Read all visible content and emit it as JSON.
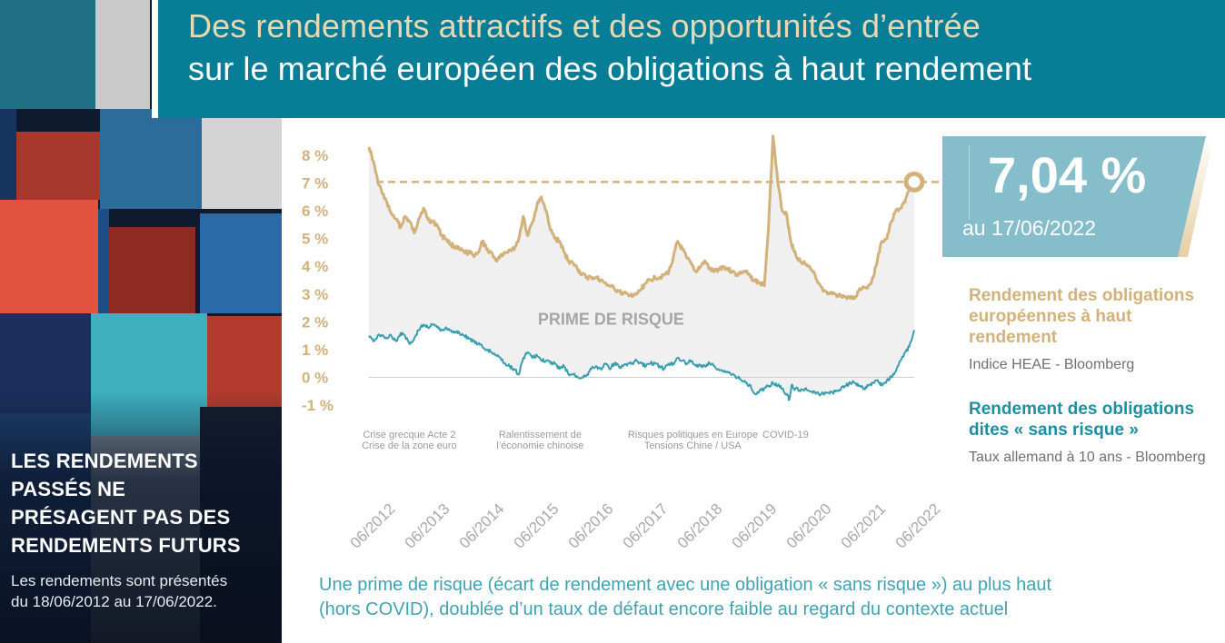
{
  "header": {
    "title_line1": "Des rendements attractifs et des opportunités d’entrée",
    "title_line2": "sur le marché européen des obligations à haut rendement"
  },
  "disclaimer": {
    "heading_lines": [
      "LES RENDEMENTS",
      "PASSÉS NE",
      "PRÉSAGENT PAS DES",
      "RENDEMENTS FUTURS"
    ],
    "text_lines": [
      "Les rendements sont présentés",
      "du 18/06/2012 au 17/06/2022."
    ]
  },
  "callout": {
    "value": "7,04 %",
    "date": "au 17/06/2022"
  },
  "legend": {
    "high_yield": {
      "title_lines": [
        "Rendement des obligations",
        "européennes à haut",
        "rendement"
      ],
      "source": "Indice HEAE - Bloomberg",
      "color": "#d2b27a"
    },
    "risk_free": {
      "title_lines": [
        "Rendement des obligations",
        "dites « sans risque »"
      ],
      "source": "Taux allemand à 10 ans - Bloomberg",
      "color": "#3a9eae"
    }
  },
  "footnote": {
    "lines": [
      "Une prime de risque (écart de rendement avec une obligation « sans risque ») au plus haut",
      "(hors COVID), doublée d’un taux de défaut encore faible au regard du contexte actuel"
    ]
  },
  "colors": {
    "header_bg": "#087d96",
    "title_accent": "#e7d8b4",
    "high_yield": "#d2b27a",
    "risk_free": "#3a9eae",
    "spread_fill": "#f0f0f0",
    "callout_bg": "#85bdca"
  },
  "chart_data": {
    "type": "line",
    "title": "",
    "xlabel": "",
    "ylabel": "",
    "ylim": [
      -1,
      8
    ],
    "xlim": [
      2012.46,
      2022.46
    ],
    "yticks": [
      8,
      7,
      6,
      5,
      4,
      3,
      2,
      1,
      0,
      -1
    ],
    "ytick_labels": [
      "8 %",
      "7 %",
      "6 %",
      "5 %",
      "4 %",
      "3 %",
      "2 %",
      "1 %",
      "0 %",
      "-1 %"
    ],
    "xticks": [
      2012.46,
      2013.46,
      2014.46,
      2015.46,
      2016.46,
      2017.46,
      2018.46,
      2019.46,
      2020.46,
      2021.46,
      2022.46
    ],
    "xtick_labels": [
      "06/2012",
      "06/2013",
      "06/2014",
      "06/2015",
      "06/2016",
      "06/2017",
      "06/2018",
      "06/2019",
      "06/2020",
      "06/2021",
      "06/2022"
    ],
    "grid": false,
    "legend": "right",
    "shaded_region_label": "PRIME DE RISQUE",
    "reference_line": {
      "value": 7.04,
      "style": "dashed",
      "label": "7,04 % au 17/06/2022"
    },
    "event_annotations": [
      {
        "lines": [
          "Crise grecque Acte 2",
          "Crise de la zone euro"
        ]
      },
      {
        "lines": [
          "Ralentissement de",
          "l’économie chinoise"
        ]
      },
      {
        "lines": [
          "Risques politiques en Europe",
          "Tensions Chine / USA"
        ]
      },
      {
        "lines": [
          "COVID-19"
        ]
      }
    ],
    "x": [
      2012.46,
      2012.54,
      2012.62,
      2012.71,
      2012.79,
      2012.87,
      2012.96,
      2013.04,
      2013.12,
      2013.21,
      2013.29,
      2013.37,
      2013.46,
      2013.54,
      2013.62,
      2013.71,
      2013.79,
      2013.87,
      2013.96,
      2014.04,
      2014.12,
      2014.21,
      2014.29,
      2014.37,
      2014.46,
      2014.54,
      2014.62,
      2014.71,
      2014.79,
      2014.87,
      2014.96,
      2015.04,
      2015.12,
      2015.21,
      2015.29,
      2015.37,
      2015.46,
      2015.54,
      2015.62,
      2015.71,
      2015.79,
      2015.87,
      2015.96,
      2016.04,
      2016.12,
      2016.21,
      2016.29,
      2016.37,
      2016.46,
      2016.54,
      2016.62,
      2016.71,
      2016.79,
      2016.87,
      2016.96,
      2017.04,
      2017.12,
      2017.21,
      2017.29,
      2017.37,
      2017.46,
      2017.54,
      2017.62,
      2017.71,
      2017.79,
      2017.87,
      2017.96,
      2018.04,
      2018.12,
      2018.21,
      2018.29,
      2018.37,
      2018.46,
      2018.54,
      2018.62,
      2018.71,
      2018.79,
      2018.87,
      2018.96,
      2019.04,
      2019.12,
      2019.21,
      2019.29,
      2019.37,
      2019.46,
      2019.54,
      2019.62,
      2019.71,
      2019.79,
      2019.87,
      2019.96,
      2020.04,
      2020.12,
      2020.17,
      2020.21,
      2020.25,
      2020.29,
      2020.37,
      2020.46,
      2020.54,
      2020.62,
      2020.71,
      2020.79,
      2020.87,
      2020.96,
      2021.04,
      2021.12,
      2021.21,
      2021.29,
      2021.37,
      2021.46,
      2021.54,
      2021.62,
      2021.71,
      2021.79,
      2021.87,
      2021.96,
      2022.04,
      2022.12,
      2022.21,
      2022.29,
      2022.37,
      2022.46
    ],
    "series": [
      {
        "name": "Rendement des obligations européennes à haut rendement",
        "values": [
          8.3,
          7.8,
          7.1,
          6.6,
          6.3,
          5.9,
          5.7,
          5.4,
          5.8,
          5.6,
          5.2,
          5.7,
          6.1,
          5.7,
          5.6,
          5.5,
          5.1,
          5.0,
          4.8,
          4.7,
          4.6,
          4.5,
          4.5,
          4.4,
          4.5,
          4.9,
          4.6,
          4.5,
          4.2,
          4.4,
          4.5,
          4.6,
          4.6,
          5.0,
          5.8,
          5.1,
          5.6,
          6.2,
          6.5,
          6.0,
          5.3,
          5.0,
          4.9,
          4.5,
          4.2,
          4.1,
          3.9,
          3.7,
          3.6,
          3.6,
          3.6,
          3.5,
          3.4,
          3.3,
          3.2,
          3.1,
          3.0,
          3.0,
          2.9,
          3.0,
          3.2,
          3.4,
          3.5,
          3.6,
          3.6,
          3.7,
          3.8,
          4.3,
          4.9,
          4.6,
          4.3,
          4.1,
          3.8,
          4.0,
          4.2,
          3.9,
          3.8,
          3.9,
          4.0,
          3.9,
          3.8,
          3.7,
          3.8,
          3.8,
          3.6,
          3.5,
          3.4,
          3.3,
          5.5,
          8.7,
          7.0,
          6.0,
          5.9,
          5.2,
          4.8,
          4.6,
          4.4,
          4.2,
          4.1,
          4.0,
          3.8,
          3.4,
          3.1,
          3.0,
          3.0,
          2.9,
          2.95,
          2.9,
          2.85,
          2.85,
          3.2,
          3.25,
          3.3,
          3.6,
          4.3,
          4.9,
          5.0,
          5.6,
          6.0,
          6.1,
          6.3,
          6.8,
          7.04
        ],
        "color": "#d2b27a"
      },
      {
        "name": "Rendement des obligations dites « sans risque »",
        "values": [
          1.5,
          1.3,
          1.5,
          1.5,
          1.4,
          1.5,
          1.3,
          1.6,
          1.5,
          1.2,
          1.4,
          1.7,
          1.9,
          1.8,
          1.9,
          1.8,
          1.7,
          1.8,
          1.7,
          1.6,
          1.6,
          1.5,
          1.4,
          1.3,
          1.2,
          1.1,
          1.0,
          0.9,
          0.8,
          0.7,
          0.5,
          0.4,
          0.3,
          0.1,
          0.7,
          0.9,
          0.7,
          0.8,
          0.6,
          0.6,
          0.5,
          0.5,
          0.3,
          0.4,
          0.1,
          0.1,
          0.0,
          0.0,
          0.1,
          0.3,
          0.4,
          0.3,
          0.5,
          0.3,
          0.5,
          0.4,
          0.4,
          0.5,
          0.5,
          0.6,
          0.5,
          0.4,
          0.5,
          0.5,
          0.4,
          0.3,
          0.5,
          0.5,
          0.7,
          0.6,
          0.5,
          0.6,
          0.4,
          0.4,
          0.4,
          0.5,
          0.4,
          0.3,
          0.2,
          0.2,
          0.1,
          0.0,
          -0.1,
          -0.2,
          -0.3,
          -0.6,
          -0.5,
          -0.4,
          -0.3,
          -0.2,
          -0.3,
          -0.4,
          -0.6,
          -0.8,
          -0.3,
          -0.4,
          -0.4,
          -0.5,
          -0.4,
          -0.5,
          -0.5,
          -0.6,
          -0.6,
          -0.55,
          -0.55,
          -0.5,
          -0.4,
          -0.3,
          -0.2,
          -0.2,
          -0.3,
          -0.4,
          -0.3,
          -0.2,
          -0.1,
          -0.3,
          -0.1,
          0.0,
          0.2,
          0.6,
          0.9,
          1.1,
          1.7
        ],
        "color": "#3a9eae"
      }
    ]
  }
}
